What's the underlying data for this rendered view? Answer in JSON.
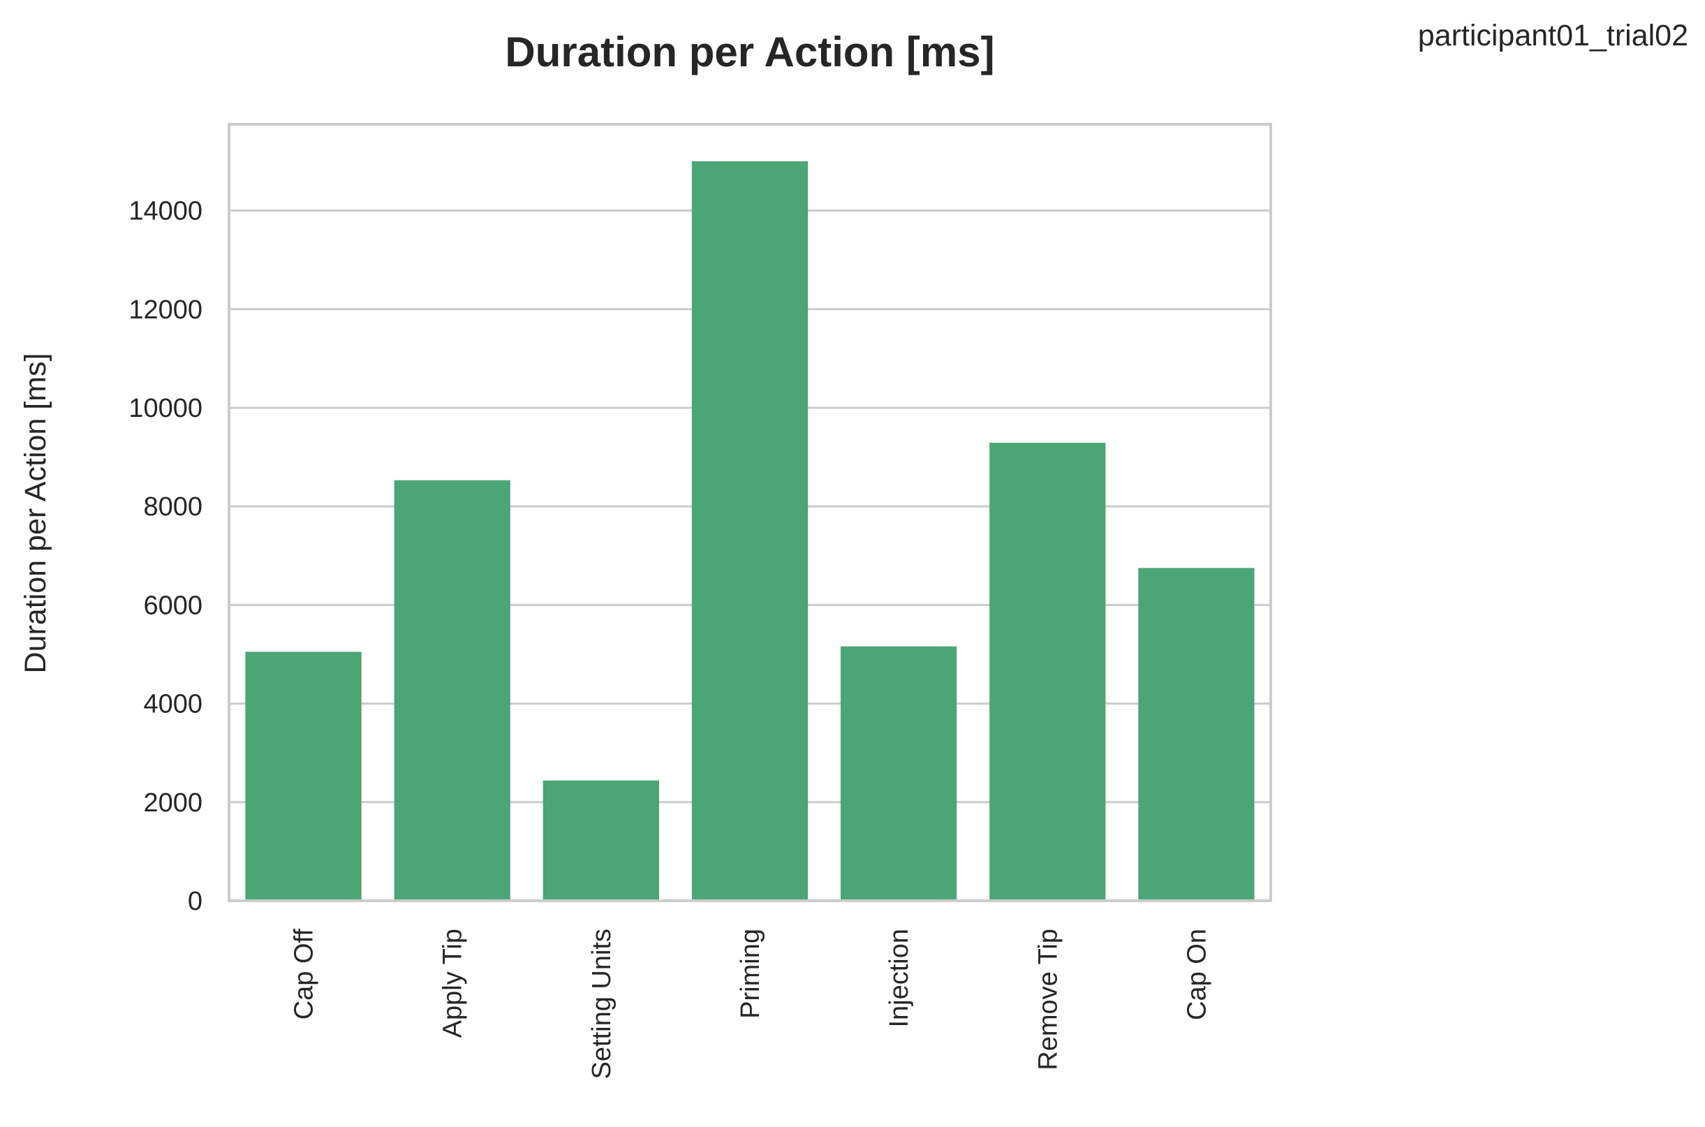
{
  "corner_label": "participant01_trial02",
  "colors": {
    "bar": "#4ca574",
    "grid": "#cccccc",
    "text": "#262626"
  },
  "chart_data": {
    "type": "bar",
    "title": "Duration per Action [ms]",
    "xlabel": "",
    "ylabel": "Duration per Action [ms]",
    "categories": [
      "Cap Off",
      "Apply Tip",
      "Setting Units",
      "Priming",
      "Injection",
      "Remove Tip",
      "Cap On"
    ],
    "values": [
      5050,
      8530,
      2440,
      15000,
      5160,
      9290,
      6750
    ],
    "ylim": [
      0,
      15750
    ],
    "yticks": [
      0,
      2000,
      4000,
      6000,
      8000,
      10000,
      12000,
      14000
    ],
    "ytick_labels": [
      "0",
      "2000",
      "4000",
      "6000",
      "8000",
      "10000",
      "12000",
      "14000"
    ],
    "grid": true,
    "legend": "none"
  }
}
